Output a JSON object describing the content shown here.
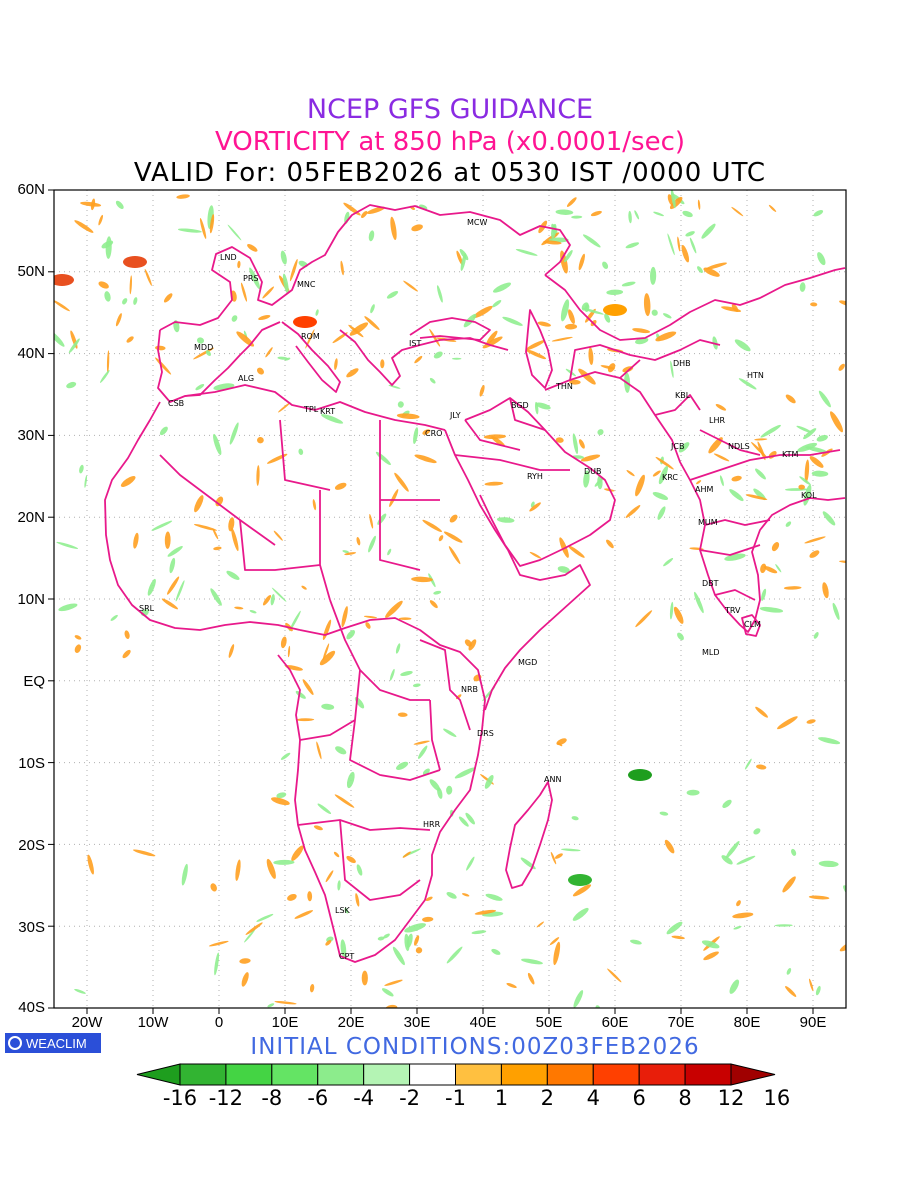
{
  "title": {
    "line1": "NCEP GFS GUIDANCE",
    "line2": "VORTICITY at 850 hPa (x0.0001/sec)",
    "line3": "VALID For: 05FEB2026 at 0530 IST /0000 UTC"
  },
  "lat_labels": [
    "60N",
    "50N",
    "40N",
    "30N",
    "20N",
    "10N",
    "EQ",
    "10S",
    "20S",
    "30S",
    "40S"
  ],
  "lon_labels": [
    "20W",
    "10W",
    "0",
    "10E",
    "20E",
    "30E",
    "40E",
    "50E",
    "60E",
    "70E",
    "80E",
    "90E"
  ],
  "cities": [
    {
      "name": "MCW"
    },
    {
      "name": "LND"
    },
    {
      "name": "PRS"
    },
    {
      "name": "MNC"
    },
    {
      "name": "ROM"
    },
    {
      "name": "IST"
    },
    {
      "name": "MDD"
    },
    {
      "name": "ALG"
    },
    {
      "name": "CSB"
    },
    {
      "name": "TPL"
    },
    {
      "name": "KRT"
    },
    {
      "name": "CRO"
    },
    {
      "name": "JLY"
    },
    {
      "name": "BGD"
    },
    {
      "name": "THN"
    },
    {
      "name": "DHB"
    },
    {
      "name": "HTN"
    },
    {
      "name": "KBL"
    },
    {
      "name": "LHR"
    },
    {
      "name": "JCB"
    },
    {
      "name": "NDLS"
    },
    {
      "name": "KTM"
    },
    {
      "name": "RYH"
    },
    {
      "name": "DUB"
    },
    {
      "name": "KRC"
    },
    {
      "name": "AHM"
    },
    {
      "name": "KOL"
    },
    {
      "name": "MUM"
    },
    {
      "name": "DBT"
    },
    {
      "name": "TRV"
    },
    {
      "name": "CLM"
    },
    {
      "name": "MLD"
    },
    {
      "name": "SRL"
    },
    {
      "name": "MGD"
    },
    {
      "name": "NRB"
    },
    {
      "name": "DRS"
    },
    {
      "name": "ANN"
    },
    {
      "name": "HRR"
    },
    {
      "name": "LSK"
    },
    {
      "name": "CPT"
    }
  ],
  "logo": {
    "text": "WEACLIM"
  },
  "initial_conditions": "INITIAL CONDITIONS:00Z03FEB2026",
  "colorbar": {
    "labels": [
      "-16",
      "-12",
      "-8",
      "-6",
      "-4",
      "-2",
      "-1",
      "1",
      "2",
      "4",
      "6",
      "8",
      "12",
      "16"
    ],
    "colors": [
      "#1e9e1e",
      "#32b432",
      "#44d444",
      "#64e464",
      "#8cec8c",
      "#b4f4b4",
      "#ffffff",
      "#ffc040",
      "#ffa000",
      "#ff7800",
      "#ff4000",
      "#e81e0a",
      "#c80000",
      "#a00000"
    ]
  },
  "colors": {
    "coast": "#e8198b",
    "positive": "#ffa020",
    "negative": "#90ee90"
  }
}
